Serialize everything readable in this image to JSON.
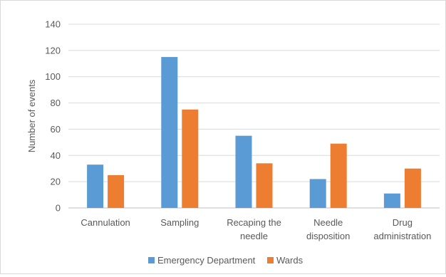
{
  "chart_data": {
    "type": "bar",
    "ylabel": "Number of events",
    "ylim": [
      0,
      140
    ],
    "ytick_step": 20,
    "ytick_labels": [
      "0",
      "20",
      "40",
      "60",
      "80",
      "100",
      "120",
      "140"
    ],
    "categories": [
      [
        "Cannulation"
      ],
      [
        "Sampling"
      ],
      [
        "Recaping the",
        "needle"
      ],
      [
        "Needle",
        "disposition"
      ],
      [
        "Drug",
        "administration"
      ]
    ],
    "series": [
      {
        "name": "Emergency Department",
        "color": "#5b9bd5",
        "values": [
          33,
          115,
          55,
          22,
          11
        ]
      },
      {
        "name": "Wards",
        "color": "#ed7d31",
        "values": [
          25,
          75,
          34,
          49,
          30
        ]
      }
    ],
    "grid": true,
    "legend_position": "bottom"
  }
}
